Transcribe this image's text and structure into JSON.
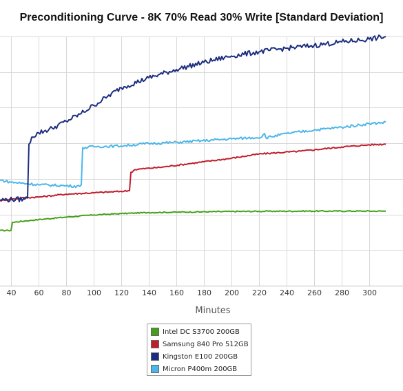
{
  "chart_data": {
    "type": "line",
    "title": "Preconditioning Curve - 8K 70% Read 30% Write [Standard Deviation]",
    "xlabel": "Minutes",
    "ylabel": "",
    "xlim": [
      32,
      312
    ],
    "ylim": [
      0,
      6
    ],
    "x_ticks": [
      40,
      60,
      80,
      100,
      120,
      140,
      160,
      180,
      200,
      220,
      240,
      260,
      280,
      300
    ],
    "grid": true,
    "legend_position": "bottom",
    "series": [
      {
        "name": "Intel DC S3700 200GB",
        "color": "#44a018",
        "noise": 0.015,
        "points": [
          [
            32,
            0.55
          ],
          [
            38,
            0.55
          ],
          [
            40,
            0.55
          ],
          [
            41,
            0.78
          ],
          [
            50,
            0.82
          ],
          [
            60,
            0.86
          ],
          [
            80,
            0.93
          ],
          [
            100,
            0.99
          ],
          [
            120,
            1.03
          ],
          [
            140,
            1.06
          ],
          [
            160,
            1.07
          ],
          [
            200,
            1.09
          ],
          [
            250,
            1.1
          ],
          [
            312,
            1.1
          ]
        ]
      },
      {
        "name": "Samsung 840 Pro 512GB",
        "color": "#bf1e2d",
        "noise": 0.02,
        "points": [
          [
            32,
            1.4
          ],
          [
            50,
            1.48
          ],
          [
            60,
            1.5
          ],
          [
            80,
            1.58
          ],
          [
            100,
            1.62
          ],
          [
            120,
            1.66
          ],
          [
            126,
            1.68
          ],
          [
            127,
            2.2
          ],
          [
            130,
            2.28
          ],
          [
            150,
            2.35
          ],
          [
            170,
            2.45
          ],
          [
            200,
            2.6
          ],
          [
            220,
            2.72
          ],
          [
            250,
            2.8
          ],
          [
            280,
            2.92
          ],
          [
            300,
            2.98
          ],
          [
            312,
            3.0
          ]
        ]
      },
      {
        "name": "Kingston E100 200GB",
        "color": "#1c2e80",
        "noise": 0.07,
        "points": [
          [
            32,
            1.42
          ],
          [
            50,
            1.44
          ],
          [
            52,
            1.47
          ],
          [
            53,
            3.0
          ],
          [
            55,
            3.2
          ],
          [
            60,
            3.32
          ],
          [
            70,
            3.45
          ],
          [
            80,
            3.65
          ],
          [
            90,
            3.85
          ],
          [
            100,
            4.1
          ],
          [
            110,
            4.35
          ],
          [
            120,
            4.6
          ],
          [
            140,
            4.88
          ],
          [
            160,
            5.12
          ],
          [
            180,
            5.32
          ],
          [
            200,
            5.5
          ],
          [
            220,
            5.62
          ],
          [
            240,
            5.72
          ],
          [
            260,
            5.8
          ],
          [
            280,
            5.9
          ],
          [
            300,
            5.98
          ],
          [
            312,
            6.05
          ]
        ]
      },
      {
        "name": "Micron P400m 200GB",
        "color": "#4bb6e9",
        "noise": 0.035,
        "points": [
          [
            32,
            1.98
          ],
          [
            40,
            1.92
          ],
          [
            60,
            1.85
          ],
          [
            80,
            1.82
          ],
          [
            90,
            1.8
          ],
          [
            91,
            1.85
          ],
          [
            92,
            2.9
          ],
          [
            100,
            2.93
          ],
          [
            120,
            2.95
          ],
          [
            140,
            3.02
          ],
          [
            160,
            3.05
          ],
          [
            200,
            3.15
          ],
          [
            222,
            3.2
          ],
          [
            224,
            3.3
          ],
          [
            225,
            3.18
          ],
          [
            240,
            3.3
          ],
          [
            260,
            3.4
          ],
          [
            280,
            3.48
          ],
          [
            300,
            3.58
          ],
          [
            312,
            3.62
          ]
        ]
      }
    ]
  }
}
